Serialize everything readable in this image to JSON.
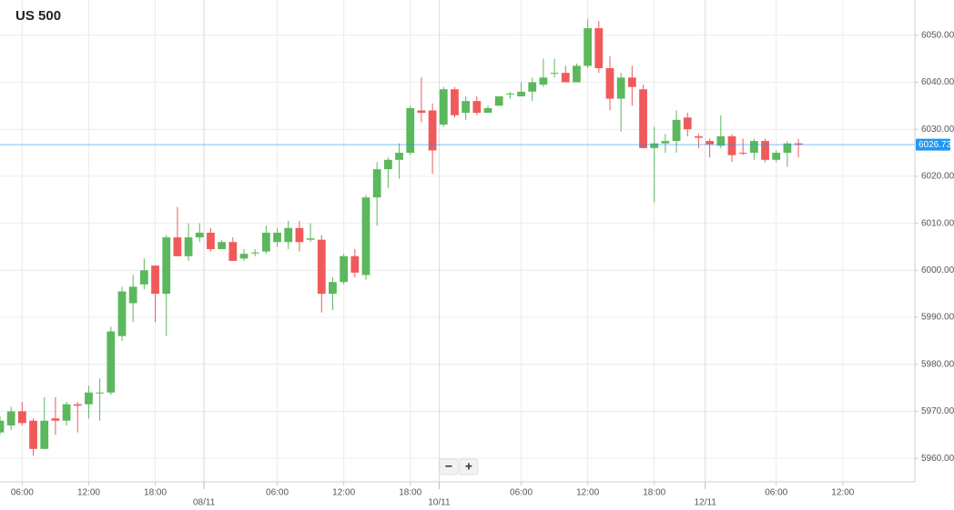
{
  "chart_data": {
    "type": "candlestick",
    "title": "US 500",
    "up_color": "#5cb85c",
    "down_color": "#f05a5a",
    "grid": true,
    "x": [
      0,
      1,
      2,
      3,
      4,
      5,
      6,
      7,
      8,
      9,
      10,
      11,
      12,
      13,
      14,
      15,
      16,
      17,
      18,
      19,
      20,
      21,
      22,
      23,
      24,
      25,
      26,
      27,
      28,
      29,
      30,
      31,
      32,
      33,
      34,
      35,
      36,
      37,
      38,
      39,
      40,
      41,
      42,
      43,
      44,
      45,
      46,
      47,
      48,
      49,
      50,
      51,
      52,
      53,
      54,
      55,
      56,
      57,
      58,
      59,
      60,
      61,
      62,
      63,
      64,
      65,
      66,
      67,
      68,
      69,
      70,
      71,
      72
    ],
    "open": [
      5965.5,
      5967,
      5970,
      5968,
      5962,
      5968.5,
      5968,
      5971.5,
      5971.5,
      5973.8,
      5974,
      5986,
      5993,
      5997,
      6001,
      5995,
      6007,
      6003,
      6007,
      6008,
      6004.5,
      6006,
      6002.5,
      6003.6,
      6004,
      6006,
      6006,
      6009,
      6006.5,
      6006.5,
      5995,
      5997.5,
      6003,
      5999,
      6015.5,
      6021.5,
      6023.5,
      6025,
      6034,
      6034,
      6031,
      6038.5,
      6033.5,
      6036,
      6033.5,
      6035,
      6037.4,
      6037,
      6038,
      6039.5,
      6041.8,
      6042,
      6040,
      6043.5,
      6051.5,
      6043,
      6036.5,
      6041,
      6038.5,
      6026,
      6027,
      6027.5,
      6032.5,
      6028.5,
      6027.5,
      6026.5,
      6028.5,
      6025,
      6025,
      6027.5,
      6023.5,
      6025,
      6027
    ],
    "high": [
      5969,
      5971,
      5972,
      5968.5,
      5973,
      5973,
      5972,
      5972,
      5975.5,
      5977,
      5988,
      5996.5,
      5999,
      6002.5,
      6001,
      6007.5,
      6013.5,
      6010,
      6010,
      6009,
      6006.5,
      6007,
      6004.5,
      6004.5,
      6009.5,
      6009,
      6010.5,
      6010.5,
      6010,
      6007.5,
      5998.5,
      6003.5,
      6004.5,
      6016,
      6023,
      6024,
      6027,
      6035,
      6041,
      6035.5,
      6039,
      6039,
      6037,
      6037,
      6035,
      6037,
      6038,
      6040,
      6041,
      6045,
      6045,
      6043.5,
      6044,
      6053.5,
      6053,
      6045.5,
      6042,
      6043.5,
      6039.5,
      6030.5,
      6029,
      6034,
      6033.5,
      6029,
      6028,
      6033,
      6029,
      6028,
      6028,
      6028,
      6025.5,
      6027.5,
      6028
    ],
    "low": [
      5965,
      5966,
      5967,
      5960.5,
      5962,
      5965,
      5967,
      5965.5,
      5968.5,
      5968,
      5973.5,
      5985,
      5989,
      5996,
      5989,
      5986,
      6003,
      6002,
      6006,
      6004,
      6004.5,
      6002,
      6002,
      6003,
      6003.5,
      6005,
      6004.5,
      6004,
      6006,
      5991,
      5991.5,
      5997,
      5998.5,
      5998,
      6009.5,
      6017.5,
      6019.5,
      6024.5,
      6031.5,
      6020.5,
      6030.5,
      6032.5,
      6032,
      6033,
      6033.5,
      6035,
      6036.5,
      6037,
      6036,
      6039,
      6041,
      6040,
      6040,
      6043,
      6042,
      6034,
      6029.5,
      6035,
      6026,
      6014.5,
      6025,
      6025,
      6028.5,
      6026,
      6024,
      6026,
      6023,
      6024.5,
      6023.5,
      6023,
      6023,
      6022,
      6024
    ],
    "close": [
      5968,
      5970,
      5967.5,
      5962,
      5968,
      5968,
      5971.5,
      5971.2,
      5974,
      5974,
      5987,
      5995.5,
      5996.5,
      6000,
      5995,
      6007,
      6003,
      6007,
      6008,
      6004.5,
      6006,
      6002,
      6003.5,
      6003.8,
      6008,
      6008,
      6009,
      6006,
      6006.8,
      5995,
      5997.5,
      6003,
      5999.5,
      6015.5,
      6021.5,
      6023.5,
      6025,
      6034.5,
      6033.5,
      6025.5,
      6038.5,
      6033,
      6036,
      6033.5,
      6034.5,
      6037,
      6037.6,
      6038,
      6040,
      6041,
      6042,
      6040,
      6043.5,
      6051.5,
      6043,
      6036.5,
      6041,
      6039,
      6026,
      6027,
      6027.5,
      6032,
      6030,
      6028.2,
      6026.8,
      6028.5,
      6024.5,
      6024.8,
      6027.5,
      6023.5,
      6025,
      6027,
      6026.73
    ],
    "xlim": [
      0,
      82.5
    ],
    "xticks": [
      {
        "value": 2,
        "label": "06:00"
      },
      {
        "value": 8,
        "label": "12:00"
      },
      {
        "value": 14,
        "label": "18:00"
      },
      {
        "value": 25,
        "label": "06:00"
      },
      {
        "value": 31,
        "label": "12:00"
      },
      {
        "value": 37,
        "label": "18:00"
      },
      {
        "value": 47,
        "label": "06:00"
      },
      {
        "value": 53,
        "label": "12:00"
      },
      {
        "value": 59,
        "label": "18:00"
      },
      {
        "value": 70,
        "label": "06:00"
      },
      {
        "value": 76,
        "label": "12:00"
      }
    ],
    "date_ticks": [
      {
        "value": 18.4,
        "label": "08/11"
      },
      {
        "value": 39.6,
        "label": "10/11"
      },
      {
        "value": 63.6,
        "label": "12/11"
      }
    ],
    "ylim": [
      5955,
      6057.5
    ],
    "yticks": [
      {
        "value": 5960,
        "label": "5960.00"
      },
      {
        "value": 5970,
        "label": "5970.00"
      },
      {
        "value": 5980,
        "label": "5980.00"
      },
      {
        "value": 5990,
        "label": "5990.00"
      },
      {
        "value": 6000,
        "label": "6000.00"
      },
      {
        "value": 6010,
        "label": "6010.00"
      },
      {
        "value": 6020,
        "label": "6020.00"
      },
      {
        "value": 6030,
        "label": "6030.00"
      },
      {
        "value": 6040,
        "label": "6040.00"
      },
      {
        "value": 6050,
        "label": "6050.00"
      }
    ],
    "last_price": {
      "value": 6026.73,
      "label": "6026.73"
    },
    "last_price_color": "#2196f3",
    "zoom_controls": [
      "−",
      "+"
    ]
  }
}
